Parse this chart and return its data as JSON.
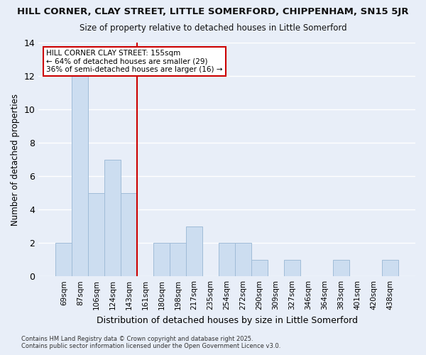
{
  "title1": "HILL CORNER, CLAY STREET, LITTLE SOMERFORD, CHIPPENHAM, SN15 5JR",
  "title2": "Size of property relative to detached houses in Little Somerford",
  "xlabel": "Distribution of detached houses by size in Little Somerford",
  "ylabel": "Number of detached properties",
  "categories": [
    "69sqm",
    "87sqm",
    "106sqm",
    "124sqm",
    "143sqm",
    "161sqm",
    "180sqm",
    "198sqm",
    "217sqm",
    "235sqm",
    "254sqm",
    "272sqm",
    "290sqm",
    "309sqm",
    "327sqm",
    "346sqm",
    "364sqm",
    "383sqm",
    "401sqm",
    "420sqm",
    "438sqm"
  ],
  "values": [
    2,
    12,
    5,
    7,
    5,
    0,
    2,
    2,
    3,
    0,
    2,
    2,
    1,
    0,
    1,
    0,
    0,
    1,
    0,
    0,
    1
  ],
  "bar_color": "#ccddf0",
  "bar_edge_color": "#a0bcd8",
  "background_color": "#e8eef8",
  "plot_bg_color": "#e8eef8",
  "grid_color": "#ffffff",
  "vline_x": 4.5,
  "vline_color": "#cc0000",
  "annotation_title": "HILL CORNER CLAY STREET: 155sqm",
  "annotation_line1": "← 64% of detached houses are smaller (29)",
  "annotation_line2": "36% of semi-detached houses are larger (16) →",
  "annotation_box_color": "#ffffff",
  "annotation_box_edge": "#cc0000",
  "ylim": [
    0,
    14
  ],
  "yticks": [
    0,
    2,
    4,
    6,
    8,
    10,
    12,
    14
  ],
  "footer1": "Contains HM Land Registry data © Crown copyright and database right 2025.",
  "footer2": "Contains public sector information licensed under the Open Government Licence v3.0."
}
